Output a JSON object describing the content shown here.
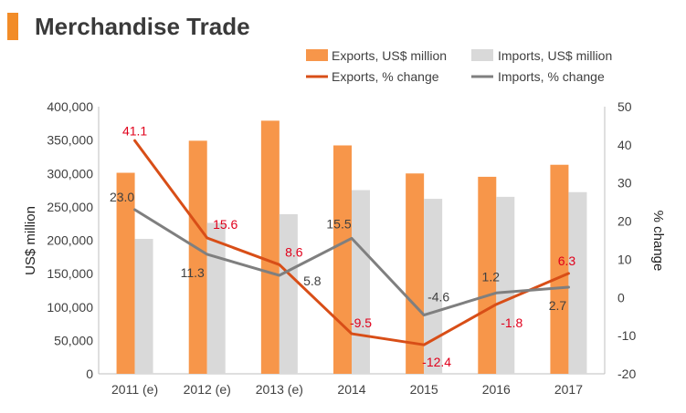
{
  "header": {
    "title": "Merchandise Trade",
    "accent_color": "#F28C28"
  },
  "legend": {
    "exports_bar": "Exports, US$ million",
    "imports_bar": "Imports, US$ million",
    "exports_line": "Exports, % change",
    "imports_line": "Imports, % change"
  },
  "chart_data": {
    "type": "bar+line",
    "categories": [
      "2011 (e)",
      "2012 (e)",
      "2013 (e)",
      "2014",
      "2015",
      "2016",
      "2017"
    ],
    "bar_series": [
      {
        "name": "Exports, US$ million",
        "color": "#F7964A",
        "values": [
          301000,
          349000,
          379000,
          342000,
          300000,
          295000,
          313000
        ]
      },
      {
        "name": "Imports, US$ million",
        "color": "#D9D9D9",
        "values": [
          202000,
          226000,
          239000,
          275000,
          262000,
          265000,
          272000
        ]
      }
    ],
    "line_series": [
      {
        "name": "Exports, % change",
        "color": "#D84E17",
        "label_color": "#E0001B",
        "values": [
          41.1,
          15.6,
          8.6,
          -9.5,
          -12.4,
          -1.8,
          6.3
        ],
        "labels": [
          "41.1",
          "15.6",
          "8.6",
          "-9.5",
          "-12.4",
          "-1.8",
          "6.3"
        ]
      },
      {
        "name": "Imports, % change",
        "color": "#7F7F7F",
        "label_color": "#404040",
        "values": [
          23.0,
          11.3,
          5.8,
          15.5,
          -4.6,
          1.2,
          2.7
        ],
        "labels": [
          "23.0",
          "11.3",
          "5.8",
          "15.5",
          "-4.6",
          "1.2",
          "2.7"
        ]
      }
    ],
    "ylabel": "US$ million",
    "y2label": "% change",
    "ylim": [
      0,
      400000
    ],
    "yticks": [
      "0",
      "50,000",
      "100,000",
      "150,000",
      "200,000",
      "250,000",
      "300,000",
      "350,000",
      "400,000"
    ],
    "y2lim": [
      -20,
      50
    ],
    "y2ticks": [
      "-20",
      "-10",
      "0",
      "10",
      "20",
      "30",
      "40",
      "50"
    ],
    "grid": false,
    "legend_position": "top"
  }
}
